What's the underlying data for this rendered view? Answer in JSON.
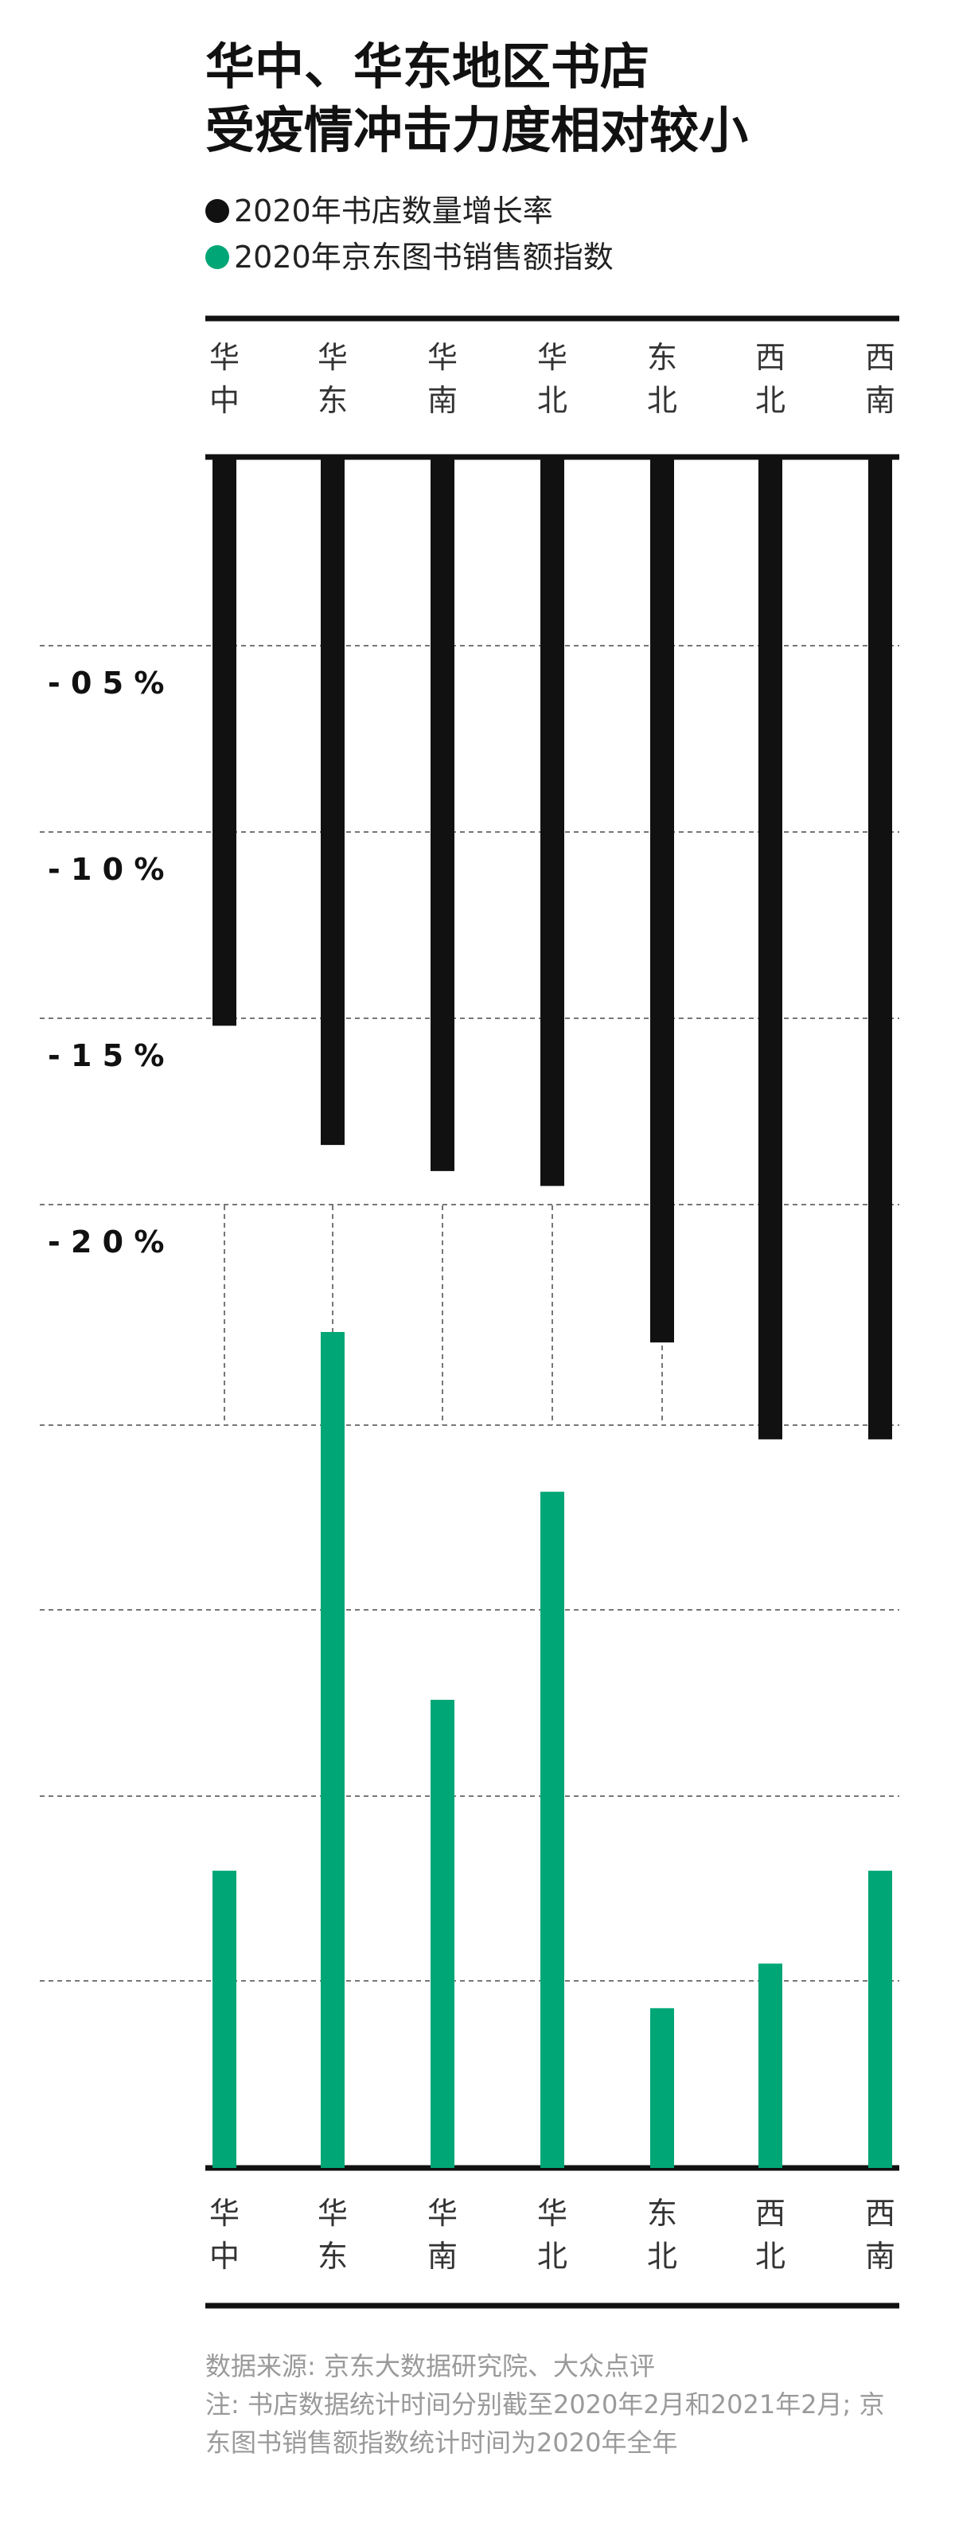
{
  "title_line1": "华中、华东地区书店",
  "title_line2": "受疫情冲击力度相对较小",
  "legend": [
    {
      "label": "2020年书店数量增长率",
      "color": "#111111"
    },
    {
      "label": "2020年京东图书销售额指数",
      "color": "#00A676"
    }
  ],
  "source": "数据来源: 京东大数据研究院、大众点评",
  "note": "注: 书店数据统计时间分别截至2020年2月和2021年2月; 京东图书销售额指数统计时间为2020年全年",
  "chart_data": {
    "type": "bar",
    "categories": [
      "华中",
      "华东",
      "华南",
      "华北",
      "东北",
      "西北",
      "西南"
    ],
    "series": [
      {
        "name": "2020年书店数量增长率",
        "values": [
          -15.2,
          -18.4,
          -19.1,
          -19.5,
          -23.7,
          -26.3,
          -26.3
        ],
        "color": "#111111"
      },
      {
        "name": "2020年京东图书销售额指数",
        "values": [
          8.0,
          22.5,
          12.6,
          18.2,
          4.3,
          5.5,
          8.0
        ],
        "color": "#00A676"
      }
    ],
    "y_ticks": [
      "- 0 5 %",
      "- 1 0 %",
      "- 1 5 %",
      "- 2 0 %"
    ],
    "y_tick_values": [
      -5,
      -10,
      -15,
      -20
    ],
    "top_ylim": [
      -26.3,
      0
    ],
    "bottom_ylim": [
      0,
      22.5
    ],
    "grid": true
  }
}
